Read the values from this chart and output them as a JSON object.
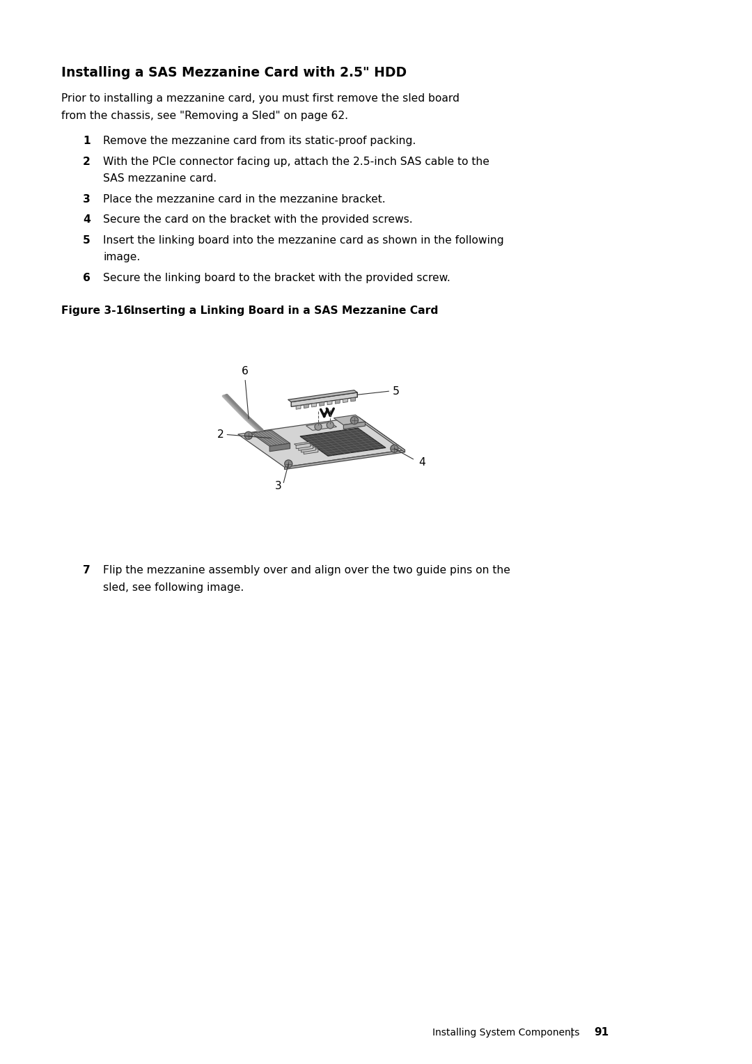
{
  "bg_color": "#ffffff",
  "page_width": 10.8,
  "page_height": 15.29,
  "title": "Installing a SAS Mezzanine Card with 2.5\" HDD",
  "intro_line1": "Prior to installing a mezzanine card, you must first remove the sled board",
  "intro_line2": "from the chassis, see \"Removing a Sled\" on page 62.",
  "steps": [
    {
      "num": "1",
      "lines": [
        "Remove the mezzanine card from its static-proof packing."
      ]
    },
    {
      "num": "2",
      "lines": [
        "With the PCIe connector facing up, attach the 2.5-inch SAS cable to the",
        "SAS mezzanine card."
      ]
    },
    {
      "num": "3",
      "lines": [
        "Place the mezzanine card in the mezzanine bracket."
      ]
    },
    {
      "num": "4",
      "lines": [
        "Secure the card on the bracket with the provided screws."
      ]
    },
    {
      "num": "5",
      "lines": [
        "Insert the linking board into the mezzanine card as shown in the following",
        "image."
      ]
    },
    {
      "num": "6",
      "lines": [
        "Secure the linking board to the bracket with the provided screw."
      ]
    }
  ],
  "figure_label": "Figure 3-16.",
  "figure_caption": "    Inserting a Linking Board in a SAS Mezzanine Card",
  "step7_lines": [
    "Flip the mezzanine assembly over and align over the two guide pins on the",
    "sled, see following image."
  ],
  "footer_text": "Installing System Components",
  "footer_sep": "|",
  "footer_page": "91"
}
